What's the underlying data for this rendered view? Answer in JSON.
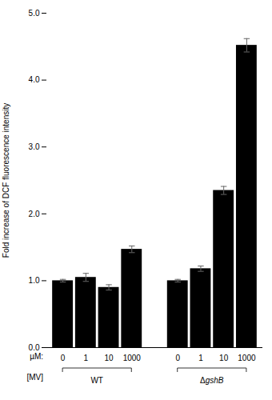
{
  "chart_data": {
    "type": "bar",
    "categories": [
      "0",
      "1",
      "10",
      "1000",
      "0",
      "1",
      "10",
      "1000"
    ],
    "values": [
      1.0,
      1.05,
      0.9,
      1.47,
      1.0,
      1.18,
      2.35,
      4.52
    ],
    "errors": [
      0.02,
      0.06,
      0.04,
      0.05,
      0.02,
      0.04,
      0.06,
      0.1
    ],
    "color": "#000000",
    "ylabel": "Fold increase of DCF fluorescence intensity",
    "ylim": [
      0,
      5
    ],
    "yticks": [
      0,
      1,
      2,
      3,
      4,
      5
    ],
    "groups": [
      "WT",
      "ΔgshB"
    ],
    "category_label": "µM:",
    "group_label": "[MV]"
  }
}
